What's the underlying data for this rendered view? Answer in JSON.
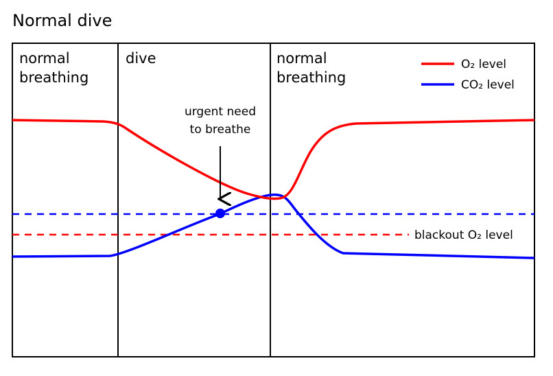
{
  "title": "Normal dive",
  "phases": [
    {
      "label_line1": "normal",
      "label_line2": "breathing"
    },
    {
      "label_line1": "dive",
      "label_line2": ""
    },
    {
      "label_line1": "normal",
      "label_line2": "breathing"
    }
  ],
  "legend": {
    "o2": {
      "label": "O₂ level",
      "color": "#ff0000"
    },
    "co2": {
      "label": "CO₂ level",
      "color": "#0000ff"
    }
  },
  "annotations": {
    "urgent_line1": "urgent need",
    "urgent_line2": "to breathe",
    "blackout_label": "blackout O₂ level"
  },
  "colors": {
    "o2": "#ff0000",
    "co2": "#0000ff",
    "frame": "#000000"
  }
}
